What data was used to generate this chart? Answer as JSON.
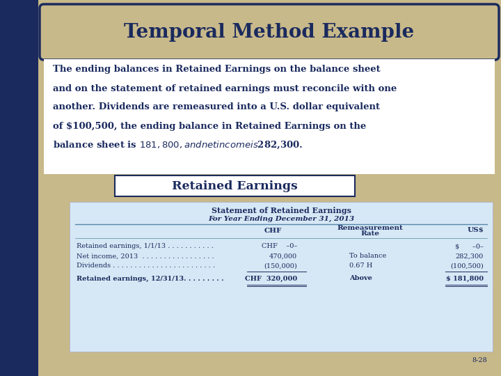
{
  "title": "Temporal Method Example",
  "title_color": "#1a2a5e",
  "bg_color": "#c8b98a",
  "left_bar_color": "#1a2a5e",
  "body_lines": [
    "The ending balances in Retained Earnings on the balance sheet",
    "and on the statement of retained earnings must reconcile with one",
    "another. Dividends are remeasured into a U.S. dollar equivalent",
    "of $100,500, the ending balance in Retained Earnings on the",
    "balance sheet is $181,800, and net income is $282,300."
  ],
  "subtitle": "Retained Earnings",
  "table_title1": "Statement of Retained Earnings",
  "table_title2": "For Year Ending December 31, 2013",
  "col_headers": [
    "CHF",
    "Remeasurement",
    "Rate",
    "US$"
  ],
  "table_rows": [
    [
      "Retained earnings, 1/1/13 . . . . . . . . . . .",
      "CHF    –0–",
      "",
      "$      –0–"
    ],
    [
      "Net income, 2013  . . . . . . . . . . . . . . . . .",
      "470,000",
      "To balance",
      "282,300"
    ],
    [
      "Dividends . . . . . . . . . . . . . . . . . . . . . . . .",
      "(150,000)",
      "0.67 H",
      "(100,500)"
    ],
    [
      "Retained earnings, 12/31/13. . . . . . . . .",
      "CHF  320,000",
      "Above",
      "$ 181,800"
    ]
  ],
  "page_num": "8-28",
  "table_bg": "#d6e8f5",
  "table_line_color": "#5588aa",
  "table_text_color": "#1a2a5e",
  "white_bg": "#ffffff"
}
